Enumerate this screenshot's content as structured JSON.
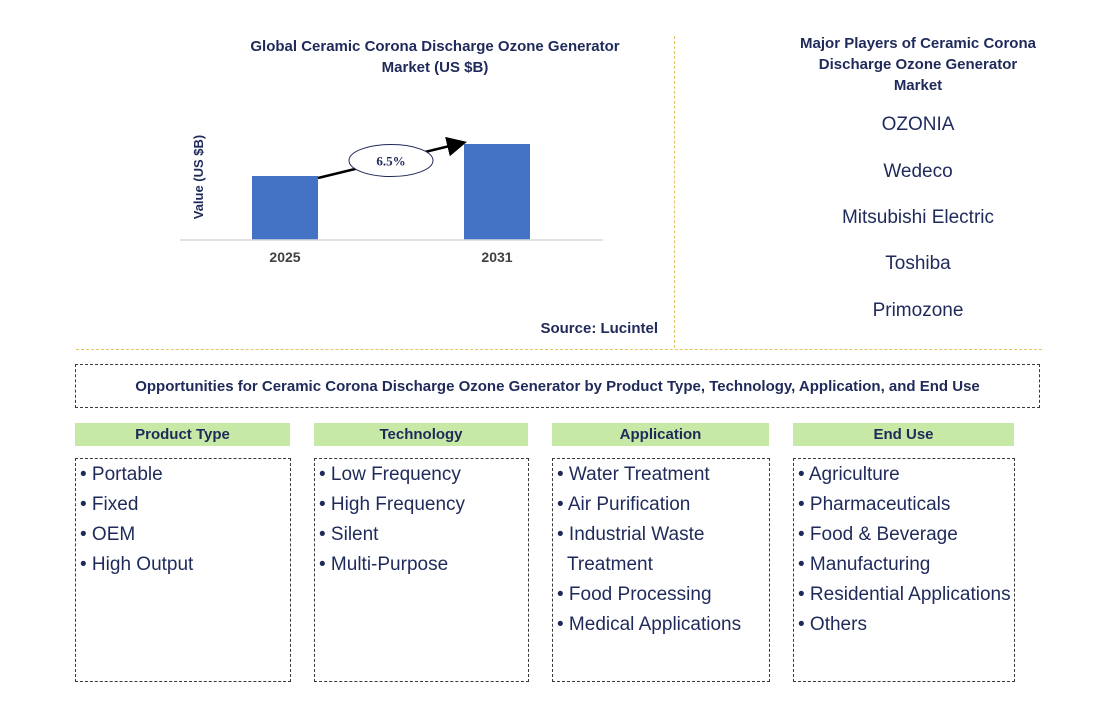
{
  "chart_data": {
    "type": "bar",
    "title": "Global Ceramic Corona Discharge Ozone Generator Market (US $B)",
    "ylabel": "Value (US $B)",
    "categories": [
      "2025",
      "2031"
    ],
    "values": [
      1.0,
      1.5
    ],
    "ylim": [
      0,
      1.5
    ],
    "annotation": "6.5%",
    "bar_color": "#4472c4",
    "grid": false
  },
  "source": "Source: Lucintel",
  "players": {
    "title": "Major Players of Ceramic Corona Discharge Ozone Generator Market",
    "items": [
      "OZONIA",
      "Wedeco",
      "Mitsubishi Electric",
      "Toshiba",
      "Primozone"
    ]
  },
  "opportunities_title": "Opportunities for Ceramic Corona Discharge Ozone Generator by Product Type, Technology, Application, and End Use",
  "categories": [
    {
      "header": "Product Type",
      "items": [
        "• Portable",
        "• Fixed",
        "• OEM",
        "• High Output"
      ]
    },
    {
      "header": "Technology",
      "items": [
        "• Low Frequency",
        "• High Frequency",
        "• Silent",
        "• Multi-Purpose"
      ]
    },
    {
      "header": "Application",
      "items": [
        "• Water Treatment",
        "• Air Purification",
        "• Industrial Waste Treatment",
        "• Food Processing",
        "• Medical Applications"
      ]
    },
    {
      "header": "End Use",
      "items": [
        "• Agriculture",
        "• Pharmaceuticals",
        "• Food & Beverage",
        "• Manufacturing",
        "• Residential Applications",
        "• Others"
      ]
    }
  ],
  "colors": {
    "header_fill": "#c6e9a6",
    "text": "#1f2a5a",
    "divider": "#e3c46a"
  }
}
